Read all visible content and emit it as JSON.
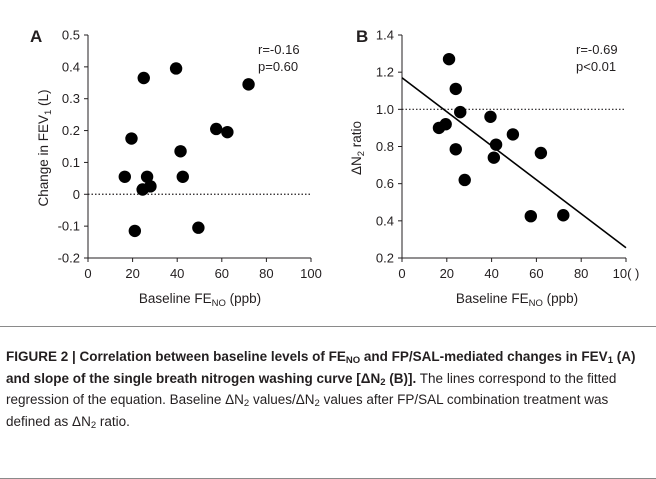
{
  "chart_data": [
    {
      "type": "scatter",
      "panel": "A",
      "ylabel": "Change in FEV₁ (L)",
      "xlabel": "Baseline FE_NO (ppb)",
      "xlim": [
        0,
        100
      ],
      "ylim": [
        -0.2,
        0.5
      ],
      "xticks": [
        "0",
        "20",
        "40",
        "60",
        "80",
        "100"
      ],
      "yticks": [
        "-0.2",
        "-0.1",
        "0",
        "0.1",
        "0.2",
        "0.3",
        "0.4",
        "0.5"
      ],
      "reference_line_y": 0,
      "stats": [
        "r=-0.16",
        "p=0.60"
      ],
      "points": [
        {
          "x": 16.5,
          "y": 0.055
        },
        {
          "x": 19.5,
          "y": 0.175
        },
        {
          "x": 21,
          "y": -0.115
        },
        {
          "x": 24.5,
          "y": 0.015
        },
        {
          "x": 25,
          "y": 0.365
        },
        {
          "x": 26.5,
          "y": 0.055
        },
        {
          "x": 28,
          "y": 0.025
        },
        {
          "x": 39.5,
          "y": 0.395
        },
        {
          "x": 41.5,
          "y": 0.135
        },
        {
          "x": 42.5,
          "y": 0.055
        },
        {
          "x": 49.5,
          "y": -0.105
        },
        {
          "x": 57.5,
          "y": 0.205
        },
        {
          "x": 62.5,
          "y": 0.195
        },
        {
          "x": 72,
          "y": 0.345
        }
      ]
    },
    {
      "type": "scatter",
      "panel": "B",
      "ylabel": "ΔN₂ ratio",
      "xlabel": "Baseline FE_NO (ppb)",
      "xlim": [
        0,
        100
      ],
      "ylim": [
        0.2,
        1.4
      ],
      "xticks": [
        "0",
        "20",
        "40",
        "60",
        "80",
        "10( )"
      ],
      "yticks": [
        "0.2",
        "0.4",
        "0.6",
        "0.8",
        "1.0",
        "1.2",
        "1.4"
      ],
      "reference_line_y": 1.0,
      "regression_line": {
        "x": [
          0,
          100
        ],
        "y": [
          1.17,
          0.255
        ]
      },
      "stats": [
        "r=-0.69",
        "p<0.01"
      ],
      "points": [
        {
          "x": 16.5,
          "y": 0.9
        },
        {
          "x": 19.5,
          "y": 0.92
        },
        {
          "x": 21,
          "y": 1.27
        },
        {
          "x": 24,
          "y": 1.11
        },
        {
          "x": 24,
          "y": 0.785
        },
        {
          "x": 26,
          "y": 0.985
        },
        {
          "x": 28,
          "y": 0.62
        },
        {
          "x": 39.5,
          "y": 0.96
        },
        {
          "x": 41,
          "y": 0.74
        },
        {
          "x": 42,
          "y": 0.81
        },
        {
          "x": 49.5,
          "y": 0.865
        },
        {
          "x": 57.5,
          "y": 0.425
        },
        {
          "x": 62,
          "y": 0.765
        },
        {
          "x": 72,
          "y": 0.43
        }
      ]
    }
  ],
  "text": {
    "ylabel_a_main": "Change in FEV",
    "ylabel_a_sub": "1",
    "ylabel_a_tail": " (L)",
    "ylabel_b_main": "ΔN",
    "ylabel_b_sub": "2",
    "ylabel_b_tail": " ratio",
    "xlabel_main": "Baseline FE",
    "xlabel_sub": "NO",
    "xlabel_tail": "  (ppb)"
  },
  "caption": {
    "figure_label": "FIGURE 2 | ",
    "bold_1": "Correlation between baseline levels of FE",
    "bold_1_sub": "NO",
    "bold_2": " and FP/SAL-mediated changes in FEV",
    "bold_2_sub": "1",
    "bold_3": " (A) and slope of the single breath nitrogen washing curve [ΔN",
    "bold_3_sub": "2",
    "bold_4": " (B)].",
    "plain_1": " The lines correspond to the fitted regression of the equation. Baseline ΔN",
    "plain_1_sub": "2",
    "plain_2": " values/ΔN",
    "plain_2_sub": "2",
    "plain_3": " values after FP/SAL combination treatment was defined as ΔN",
    "plain_3_sub": "2",
    "plain_4": " ratio."
  }
}
